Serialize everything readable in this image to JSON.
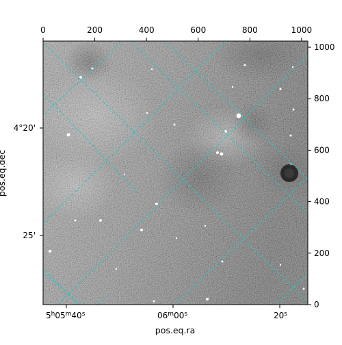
{
  "chart_data": {
    "type": "image",
    "xlabel": "pos.eq.ra",
    "ylabel": "pos.eq.dec",
    "pixel_axes": {
      "x": {
        "ticks": [
          0,
          200,
          400,
          600,
          800,
          1000
        ],
        "range": [
          0,
          1024
        ]
      },
      "y": {
        "ticks": [
          0,
          200,
          400,
          600,
          800,
          1000
        ],
        "range": [
          0,
          1024
        ]
      }
    },
    "world_axes": {
      "ra_tick_labels": [
        {
          "h": "5",
          "m": "05",
          "s": "40"
        },
        {
          "m": "06",
          "s": "00"
        },
        {
          "s": "20"
        }
      ],
      "dec_tick_labels": [
        "4°20'",
        "25'"
      ]
    },
    "grid": {
      "on": true,
      "color": "#20c8c8",
      "style": "dashed"
    },
    "image_colormap": "gray"
  }
}
